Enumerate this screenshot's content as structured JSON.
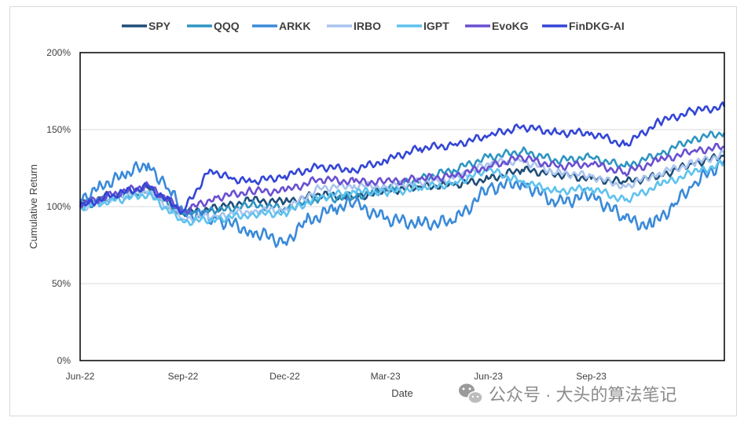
{
  "chart_data": {
    "type": "line",
    "title": "",
    "xlabel": "Date",
    "ylabel": "Cumulative Return",
    "ylim": [
      0,
      200
    ],
    "y_ticks": [
      "0%",
      "50%",
      "100%",
      "150%",
      "200%"
    ],
    "y_tick_values": [
      0,
      50,
      100,
      150,
      200
    ],
    "x_ticks": [
      "Jun-22",
      "Sep-22",
      "Dec-22",
      "Mar-23",
      "Jun-23",
      "Sep-23"
    ],
    "x_tick_dates": [
      "2022-06-01",
      "2022-09-01",
      "2022-12-01",
      "2023-03-01",
      "2023-06-01",
      "2023-09-01"
    ],
    "x_range": [
      "2022-06-01",
      "2023-12-29"
    ],
    "grid": "horizontal",
    "legend_position": "top",
    "series": [
      {
        "name": "SPY",
        "color": "#1f4e79",
        "x": [
          "2022-06-01",
          "2022-07-01",
          "2022-08-01",
          "2022-09-01",
          "2022-10-01",
          "2022-11-01",
          "2022-12-01",
          "2023-01-01",
          "2023-02-01",
          "2023-03-01",
          "2023-04-01",
          "2023-05-01",
          "2023-06-01",
          "2023-07-01",
          "2023-08-01",
          "2023-09-01",
          "2023-10-01",
          "2023-11-01",
          "2023-12-01",
          "2023-12-29"
        ],
        "values": [
          102,
          108,
          112,
          96,
          99,
          104,
          103,
          108,
          106,
          110,
          113,
          114,
          118,
          124,
          121,
          118,
          116,
          120,
          128,
          133
        ]
      },
      {
        "name": "QQQ",
        "color": "#2e95c2",
        "x": [
          "2022-06-01",
          "2022-07-01",
          "2022-08-01",
          "2022-09-01",
          "2022-10-01",
          "2022-11-01",
          "2022-12-01",
          "2023-01-01",
          "2023-02-01",
          "2023-03-01",
          "2023-04-01",
          "2023-05-01",
          "2023-06-01",
          "2023-07-01",
          "2023-08-01",
          "2023-09-01",
          "2023-10-01",
          "2023-11-01",
          "2023-12-01",
          "2023-12-29"
        ],
        "values": [
          100,
          106,
          110,
          95,
          97,
          101,
          99,
          105,
          106,
          112,
          118,
          124,
          132,
          136,
          130,
          132,
          126,
          134,
          144,
          148
        ]
      },
      {
        "name": "ARKK",
        "color": "#3a8ad9",
        "x": [
          "2022-06-01",
          "2022-06-20",
          "2022-07-10",
          "2022-08-01",
          "2022-08-20",
          "2022-09-01",
          "2022-10-01",
          "2022-11-01",
          "2022-12-01",
          "2022-12-20",
          "2023-01-15",
          "2023-02-01",
          "2023-03-01",
          "2023-04-01",
          "2023-05-01",
          "2023-06-01",
          "2023-07-01",
          "2023-08-01",
          "2023-09-01",
          "2023-10-01",
          "2023-10-25",
          "2023-11-15",
          "2023-12-01",
          "2023-12-29"
        ],
        "values": [
          104,
          114,
          120,
          128,
          110,
          97,
          92,
          84,
          77,
          90,
          99,
          102,
          92,
          89,
          90,
          112,
          116,
          102,
          108,
          92,
          87,
          102,
          114,
          130
        ]
      },
      {
        "name": "IRBO",
        "color": "#a9c4ee",
        "x": [
          "2022-06-01",
          "2022-07-01",
          "2022-08-01",
          "2022-09-01",
          "2022-10-01",
          "2022-11-01",
          "2022-12-01",
          "2023-01-01",
          "2023-02-01",
          "2023-03-01",
          "2023-04-01",
          "2023-05-01",
          "2023-06-01",
          "2023-07-01",
          "2023-08-01",
          "2023-09-01",
          "2023-10-01",
          "2023-11-01",
          "2023-12-01",
          "2023-12-29"
        ],
        "values": [
          99,
          106,
          110,
          92,
          94,
          97,
          98,
          112,
          114,
          113,
          116,
          118,
          128,
          130,
          122,
          120,
          113,
          122,
          128,
          134
        ]
      },
      {
        "name": "IGPT",
        "color": "#5fc2ee",
        "x": [
          "2022-06-01",
          "2022-07-01",
          "2022-08-01",
          "2022-09-01",
          "2022-10-01",
          "2022-11-01",
          "2022-12-01",
          "2023-01-01",
          "2023-02-01",
          "2023-03-01",
          "2023-04-01",
          "2023-05-01",
          "2023-06-01",
          "2023-07-01",
          "2023-08-01",
          "2023-09-01",
          "2023-10-01",
          "2023-11-01",
          "2023-12-01",
          "2023-12-29"
        ],
        "values": [
          100,
          104,
          108,
          90,
          92,
          95,
          96,
          106,
          110,
          109,
          112,
          115,
          124,
          116,
          110,
          112,
          104,
          114,
          122,
          128
        ]
      },
      {
        "name": "EvoKG",
        "color": "#6a4fd0",
        "x": [
          "2022-06-01",
          "2022-07-01",
          "2022-08-01",
          "2022-09-01",
          "2022-10-01",
          "2022-11-01",
          "2022-12-01",
          "2023-01-01",
          "2023-02-01",
          "2023-03-01",
          "2023-04-01",
          "2023-05-01",
          "2023-06-01",
          "2023-07-01",
          "2023-08-01",
          "2023-09-01",
          "2023-10-01",
          "2023-11-01",
          "2023-12-01",
          "2023-12-29"
        ],
        "values": [
          101,
          108,
          114,
          97,
          106,
          110,
          110,
          118,
          116,
          116,
          118,
          120,
          126,
          132,
          126,
          128,
          122,
          130,
          136,
          139
        ]
      },
      {
        "name": "FinDKG-AI",
        "color": "#3346d6",
        "x": [
          "2022-06-01",
          "2022-07-01",
          "2022-08-01",
          "2022-09-01",
          "2022-09-25",
          "2022-10-15",
          "2022-11-01",
          "2022-12-01",
          "2023-01-01",
          "2023-02-01",
          "2023-03-01",
          "2023-04-01",
          "2023-05-01",
          "2023-06-01",
          "2023-07-01",
          "2023-08-01",
          "2023-09-01",
          "2023-10-01",
          "2023-11-01",
          "2023-12-01",
          "2023-12-29"
        ],
        "values": [
          100,
          108,
          113,
          97,
          124,
          118,
          116,
          120,
          126,
          124,
          130,
          138,
          140,
          146,
          152,
          148,
          148,
          140,
          155,
          162,
          165
        ]
      }
    ]
  },
  "watermark": {
    "icon": "wechat-icon",
    "text": "公众号 · 大头的算法笔记"
  }
}
